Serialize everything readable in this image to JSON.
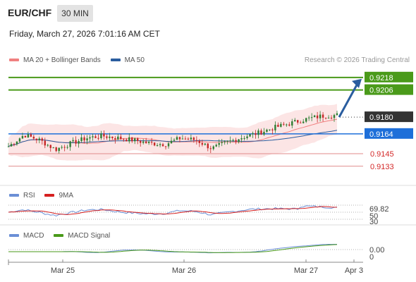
{
  "header": {
    "symbol": "EUR/CHF",
    "timeframe": "30 MIN",
    "datetime": "Friday, March 27, 2026 7:01:16 AM CET"
  },
  "legends": {
    "main": [
      {
        "label": "MA 20 + Bollinger Bands",
        "color": "#f08080"
      },
      {
        "label": "MA 50",
        "color": "#2a5d9f"
      }
    ],
    "rsi": [
      {
        "label": "RSI",
        "color": "#6b8fd6"
      },
      {
        "label": "9MA",
        "color": "#d62020"
      }
    ],
    "macd": [
      {
        "label": "MACD",
        "color": "#6b8fd6"
      },
      {
        "label": "MACD Signal",
        "color": "#4a9a1a"
      }
    ]
  },
  "credit": "Research © 2026 Trading Central",
  "chart_data": {
    "type": "candlestick",
    "ylim": [
      0.9118,
      0.9228
    ],
    "x_ticks": [
      "Mar 25",
      "Mar 26",
      "Mar 27",
      "Apr 3"
    ],
    "levels": [
      {
        "value": 0.9218,
        "label": "0.9218",
        "kind": "resistance",
        "color": "#4a9a1a"
      },
      {
        "value": 0.9206,
        "label": "0.9206",
        "kind": "resistance",
        "color": "#4a9a1a"
      },
      {
        "value": 0.918,
        "label": "0.9180",
        "kind": "last-price",
        "color": "#333333"
      },
      {
        "value": 0.9164,
        "label": "0.9164",
        "kind": "pivot",
        "color": "#1e6fd9"
      },
      {
        "value": 0.9145,
        "label": "0.9145",
        "kind": "support",
        "color": "#e08a8a"
      },
      {
        "value": 0.9133,
        "label": "0.9133",
        "kind": "support",
        "color": "#e08a8a"
      }
    ],
    "close_profile": [
      0.9152,
      0.9163,
      0.9158,
      0.9149,
      0.9155,
      0.916,
      0.9162,
      0.916,
      0.9158,
      0.9155,
      0.9154,
      0.916,
      0.9158,
      0.915,
      0.9156,
      0.9161,
      0.9165,
      0.917,
      0.9174,
      0.9178,
      0.9181,
      0.9182
    ],
    "rsi": {
      "last": 69.82,
      "levels": [
        70,
        50,
        30
      ],
      "labels": [
        "69.82",
        "50",
        "30"
      ]
    },
    "macd": {
      "last": 0.0,
      "labels": [
        "0.00",
        "0"
      ]
    },
    "arrow": {
      "from": 0.918,
      "to": 0.9218
    }
  }
}
